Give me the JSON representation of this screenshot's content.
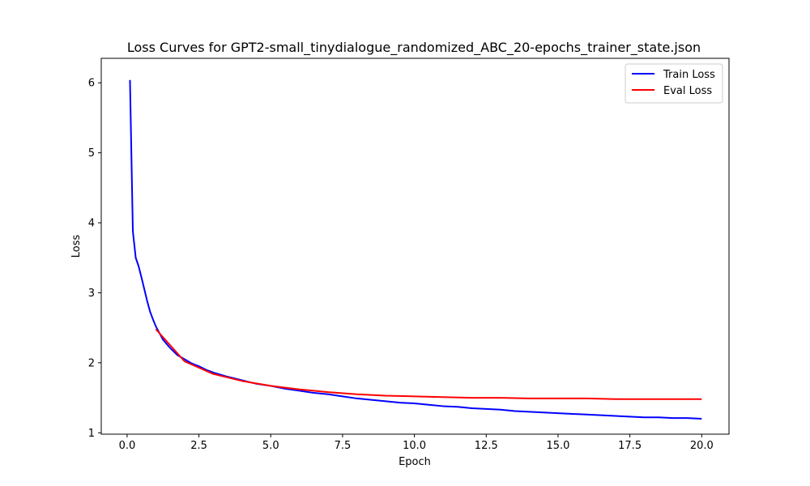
{
  "chart_data": {
    "type": "line",
    "title": "Loss Curves for GPT2-small_tinydialogue_randomized_ABC_20-epochs_trainer_state.json",
    "xlabel": "Epoch",
    "ylabel": "Loss",
    "xlim": [
      -0.9,
      20.95
    ],
    "ylim": [
      0.98,
      6.35
    ],
    "xticks": [
      0.0,
      2.5,
      5.0,
      7.5,
      10.0,
      12.5,
      15.0,
      17.5,
      20.0
    ],
    "xtick_labels": [
      "0.0",
      "2.5",
      "5.0",
      "7.5",
      "10.0",
      "12.5",
      "15.0",
      "17.5",
      "20.0"
    ],
    "yticks": [
      1,
      2,
      3,
      4,
      5,
      6
    ],
    "ytick_labels": [
      "1",
      "2",
      "3",
      "4",
      "5",
      "6"
    ],
    "grid": false,
    "legend_position": "top-right",
    "series": [
      {
        "name": "Train Loss",
        "color": "#0000ff",
        "x": [
          0.1,
          0.2,
          0.3,
          0.4,
          0.5,
          0.6,
          0.7,
          0.8,
          0.9,
          1.0,
          1.25,
          1.5,
          1.75,
          2.0,
          2.25,
          2.5,
          2.75,
          3.0,
          3.5,
          4.0,
          4.5,
          5.0,
          5.5,
          6.0,
          6.5,
          7.0,
          7.5,
          8.0,
          8.5,
          9.0,
          9.5,
          10.0,
          10.5,
          11.0,
          11.5,
          12.0,
          12.5,
          13.0,
          13.5,
          14.0,
          14.5,
          15.0,
          15.5,
          16.0,
          16.5,
          17.0,
          17.5,
          18.0,
          18.5,
          19.0,
          19.5,
          20.0
        ],
        "y": [
          6.04,
          3.88,
          3.5,
          3.38,
          3.22,
          3.05,
          2.88,
          2.73,
          2.62,
          2.52,
          2.33,
          2.21,
          2.11,
          2.05,
          1.99,
          1.95,
          1.9,
          1.86,
          1.8,
          1.75,
          1.7,
          1.67,
          1.63,
          1.6,
          1.57,
          1.55,
          1.52,
          1.49,
          1.47,
          1.45,
          1.43,
          1.42,
          1.4,
          1.38,
          1.37,
          1.35,
          1.34,
          1.33,
          1.31,
          1.3,
          1.29,
          1.28,
          1.27,
          1.26,
          1.25,
          1.24,
          1.23,
          1.22,
          1.22,
          1.21,
          1.21,
          1.2
        ]
      },
      {
        "name": "Eval Loss",
        "color": "#ff0000",
        "x": [
          1,
          2,
          3,
          4,
          5,
          6,
          7,
          8,
          9,
          10,
          11,
          12,
          13,
          14,
          15,
          16,
          17,
          18,
          19,
          20
        ],
        "y": [
          2.48,
          2.02,
          1.84,
          1.74,
          1.67,
          1.62,
          1.58,
          1.55,
          1.53,
          1.52,
          1.51,
          1.5,
          1.5,
          1.49,
          1.49,
          1.49,
          1.48,
          1.48,
          1.48,
          1.48
        ]
      }
    ]
  }
}
